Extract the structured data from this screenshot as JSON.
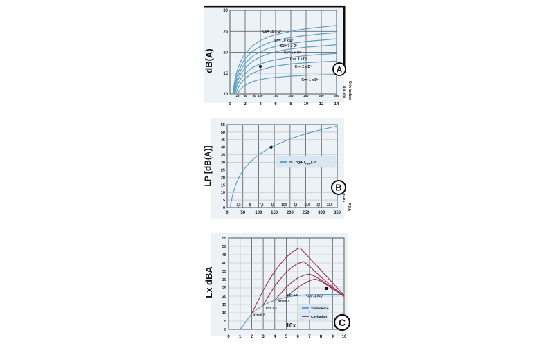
{
  "colors": {
    "page_bg": "#ffffff",
    "chart_bg": "#edf2f7",
    "curve": "#5d9fbe",
    "cavitation": "#9a3950",
    "frame": "#0d0d0d",
    "grid_dark": "#51565e",
    "grid_light": "#b4b8be",
    "legend_bg": "#d9e7f3",
    "text": "#141414",
    "marker": "#111111"
  },
  "chart_data": [
    {
      "id": "a",
      "type": "line",
      "badge": "A",
      "ylabel": "dB(A)",
      "right_labels": [
        "d in mm",
        "D in inches"
      ],
      "xlim": [
        0,
        14
      ],
      "ylim": [
        10,
        30
      ],
      "xticks": [
        0,
        2,
        4,
        6,
        8,
        10,
        12,
        14
      ],
      "yticks": [
        10,
        15,
        20,
        25,
        30
      ],
      "inner_axis": {
        "unit": "mm",
        "ticks": [
          {
            "label": "25",
            "x": 1
          },
          {
            "label": "50",
            "x": 2
          },
          {
            "label": "80",
            "x": 3.2
          },
          {
            "label": "100",
            "x": 4
          },
          {
            "label": "150",
            "x": 6
          },
          {
            "label": "200",
            "x": 8
          },
          {
            "label": "250",
            "x": 10
          },
          {
            "label": "300",
            "x": 12
          },
          {
            "label": "350",
            "x": 14
          }
        ]
      },
      "series": [
        {
          "name": "Cv= 15 x D²",
          "color": "curve",
          "label_x": 4.3,
          "label_y": 24.7,
          "x": [
            0.4,
            0.6,
            0.8,
            1,
            1.5,
            2,
            3,
            4,
            5,
            6,
            7,
            8,
            9,
            10,
            11,
            12,
            13,
            14
          ],
          "y": [
            10,
            12.8,
            14.6,
            15.9,
            18.2,
            19.7,
            21.6,
            22.8,
            23.6,
            24.2,
            24.6,
            25.0,
            25.3,
            25.6,
            25.8,
            26.0,
            26.2,
            26.4
          ]
        },
        {
          "name": "Cv= 10 x D²",
          "color": "curve",
          "label_x": 5.85,
          "label_y": 22.6,
          "x": [
            0.45,
            0.65,
            0.85,
            1,
            1.5,
            2,
            3,
            4,
            5,
            6,
            7,
            8,
            9,
            10,
            12,
            14
          ],
          "y": [
            10,
            12.4,
            14.0,
            14.8,
            17.0,
            18.5,
            20.3,
            21.4,
            22.2,
            22.8,
            23.2,
            23.5,
            23.8,
            24.0,
            24.4,
            24.7
          ]
        },
        {
          "name": "Cv= 7 x D²",
          "color": "curve",
          "label_x": 6.6,
          "label_y": 21.2,
          "x": [
            0.5,
            0.7,
            0.9,
            1,
            1.5,
            2,
            3,
            4,
            5,
            6,
            7,
            8,
            10,
            12,
            14
          ],
          "y": [
            10,
            12.1,
            13.5,
            13.9,
            16.0,
            17.4,
            19.1,
            20.1,
            20.9,
            21.4,
            21.8,
            22.1,
            22.6,
            22.9,
            23.2
          ]
        },
        {
          "name": "Cv= 5 x D²",
          "color": "curve",
          "label_x": 7.1,
          "label_y": 19.7,
          "x": [
            0.55,
            0.8,
            1,
            1.5,
            2,
            3,
            4,
            5,
            6,
            7,
            8,
            10,
            12,
            14
          ],
          "y": [
            10,
            12.0,
            13.1,
            15.0,
            16.3,
            17.9,
            18.9,
            19.6,
            20.1,
            20.5,
            20.8,
            21.2,
            21.5,
            21.8
          ]
        },
        {
          "name": "Cv= 3 x D²",
          "color": "curve",
          "label_x": 7.9,
          "label_y": 18.1,
          "x": [
            0.65,
            0.9,
            1,
            1.5,
            2,
            3,
            4,
            5,
            6,
            8,
            10,
            12,
            14
          ],
          "y": [
            10,
            11.8,
            12.2,
            13.9,
            15.0,
            16.4,
            17.2,
            17.8,
            18.2,
            18.8,
            19.2,
            19.5,
            19.7
          ]
        },
        {
          "name": "Cv= 2 x D²",
          "color": "curve",
          "label_x": 8.5,
          "label_y": 16.3,
          "x": [
            0.8,
            1,
            1.5,
            2,
            3,
            4,
            5,
            6,
            8,
            10,
            12,
            14
          ],
          "y": [
            10,
            11.2,
            12.8,
            13.8,
            15.0,
            15.8,
            16.3,
            16.7,
            17.2,
            17.5,
            17.7,
            17.9
          ]
        },
        {
          "name": "Cv= 1 x D²",
          "color": "curve",
          "label_x": 9.4,
          "label_y": 13.1,
          "x": [
            1,
            1.3,
            1.7,
            2,
            3,
            4,
            5,
            6,
            8,
            10,
            12,
            14
          ],
          "y": [
            10,
            11.0,
            11.7,
            12.1,
            13.0,
            13.5,
            13.8,
            14.0,
            14.3,
            14.5,
            14.6,
            14.7
          ]
        }
      ],
      "marker": {
        "shape": "circle",
        "x": 4,
        "y": 16.6
      }
    },
    {
      "id": "b",
      "type": "line",
      "badge": "B",
      "ylabel": "LP [dB(A)]",
      "right_labels": [
        "BARA",
        "PSIA"
      ],
      "xlim": [
        0,
        350
      ],
      "ylim": [
        0,
        55
      ],
      "xticks": [
        0,
        50,
        100,
        150,
        200,
        250,
        300,
        350
      ],
      "yticks": [
        0,
        5,
        10,
        15,
        20,
        25,
        30,
        35,
        40,
        45,
        50,
        55
      ],
      "inner_axis": {
        "unit": "BARA",
        "ticks": [
          {
            "label": "2.5",
            "x": 36.3
          },
          {
            "label": "5",
            "x": 72.5
          },
          {
            "label": "7.5",
            "x": 108.8
          },
          {
            "label": "10",
            "x": 145
          },
          {
            "label": "12.5",
            "x": 181.3
          },
          {
            "label": "15",
            "x": 217.6
          },
          {
            "label": "17.5",
            "x": 254
          },
          {
            "label": "20",
            "x": 290
          },
          {
            "label": "22.5",
            "x": 326.3
          }
        ]
      },
      "legend": {
        "entries": [
          {
            "color": "curve",
            "pre": "35 Log(P1",
            "sub": "PSIA",
            "post": ")-35"
          }
        ]
      },
      "series": [
        {
          "name": "35 Log(P1 PSIA)-35",
          "color": "curve",
          "x": [
            10,
            12,
            15,
            20,
            30,
            40,
            50,
            75,
            100,
            140,
            200,
            250,
            300,
            350
          ],
          "y": [
            0,
            2.8,
            6.2,
            10.5,
            16.7,
            21.1,
            24.5,
            30.6,
            35,
            40.1,
            45.5,
            48.9,
            51.7,
            54.0
          ]
        }
      ],
      "marker": {
        "shape": "circle",
        "x": 140,
        "y": 40
      }
    },
    {
      "id": "c",
      "type": "line",
      "badge": "C",
      "ylabel": "Lx dBA",
      "xlim": [
        0,
        10
      ],
      "ylim": [
        0,
        55
      ],
      "xticks": [
        0,
        1,
        2,
        3,
        4,
        5,
        6,
        7,
        8,
        9,
        10
      ],
      "yticks": [
        0,
        5,
        10,
        15,
        20,
        25,
        30,
        35,
        40,
        45,
        50,
        55
      ],
      "legend": {
        "entries": [
          {
            "color": "curve",
            "label": "Turbulence"
          },
          {
            "color": "cavitation",
            "label": "Cavitation"
          }
        ]
      },
      "series": [
        {
          "name": "Turbulence",
          "color": "curve",
          "x": [
            1,
            1.5,
            2,
            2.5,
            3,
            3.5,
            4,
            4.5,
            5,
            5.5,
            6,
            6.5,
            7,
            8,
            9,
            10
          ],
          "y": [
            0,
            4.5,
            9.5,
            12.3,
            14.5,
            16.2,
            17.5,
            18.6,
            19.4,
            20,
            20.4,
            20.7,
            20.9,
            21,
            21,
            21
          ]
        },
        {
          "name": "Xfz= 0.2",
          "color": "cavitation",
          "label_x": 2.15,
          "label_y": 8.1,
          "x": [
            2,
            2.5,
            3,
            3.5,
            4,
            4.5,
            5,
            5.5,
            6,
            6.2,
            7,
            8,
            9,
            10
          ],
          "y": [
            9.5,
            16.5,
            23.5,
            29.5,
            35,
            39.5,
            43.5,
            46.5,
            48.7,
            49,
            43,
            35.5,
            28,
            20.5
          ]
        },
        {
          "name": "Xfz= 0.3",
          "color": "cavitation",
          "label_x": 3.2,
          "label_y": 12.3,
          "x": [
            3,
            3.5,
            4,
            4.5,
            5,
            5.5,
            6,
            6.5,
            7,
            8,
            9,
            10
          ],
          "y": [
            14.5,
            20.5,
            26,
            30.5,
            34.5,
            37.5,
            39.7,
            40.8,
            38,
            31.5,
            25.5,
            20.2
          ]
        },
        {
          "name": "Xfz= 0.4",
          "color": "cavitation",
          "label_x": 4.3,
          "label_y": 16.2,
          "x": [
            4,
            4.5,
            5,
            5.5,
            6,
            6.5,
            7,
            7.5,
            8,
            9,
            10
          ],
          "y": [
            17.5,
            21.5,
            25.5,
            28.5,
            31,
            32.5,
            33.3,
            31.8,
            29.8,
            24.8,
            20.2
          ]
        },
        {
          "name": "Xfz= 0.5",
          "color": "cavitation",
          "label_x": 5.0,
          "label_y": 20.0,
          "x": [
            5,
            5.5,
            6,
            6.5,
            7,
            7.5,
            8,
            9,
            10
          ],
          "y": [
            19.4,
            22.5,
            25.2,
            27.5,
            29.3,
            30.3,
            29,
            24.5,
            19.8
          ]
        }
      ],
      "annotations": [
        {
          "text": "For FL=0.7",
          "x": 6.86,
          "y": 19.4,
          "size": 4.2,
          "italic": true,
          "anchor": "start",
          "arrow": {
            "x1": 6.8,
            "y1": 20.0,
            "x2": 6.58,
            "y2": 21.0
          }
        },
        {
          "text": "10x",
          "x": 5.4,
          "y": 1.25,
          "size": 8.5,
          "bold": true,
          "anchor": "middle"
        }
      ],
      "marker": {
        "shape": "square",
        "x": 8.5,
        "y": 24.6
      }
    }
  ]
}
